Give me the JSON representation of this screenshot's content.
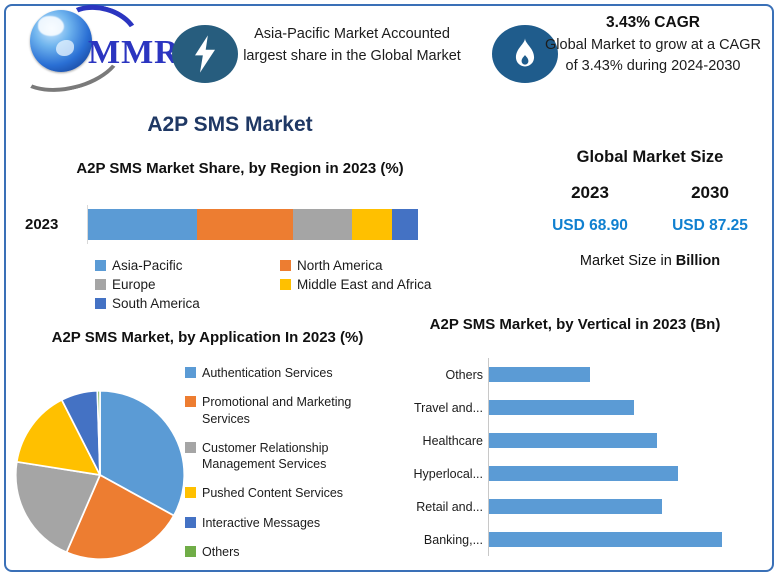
{
  "brand": {
    "logo_text": "MMR"
  },
  "header": {
    "highlight": {
      "icon": "lightning-icon",
      "text": "Asia-Pacific Market Accounted largest share in the Global Market"
    },
    "cagr": {
      "icon": "flame-icon",
      "title": "3.43% CAGR",
      "text": "Global Market to grow at a CAGR of 3.43% during 2024-2030"
    }
  },
  "page": {
    "title": "A2P SMS Market"
  },
  "market_size": {
    "title": "Global Market Size",
    "years": [
      "2023",
      "2030"
    ],
    "values": [
      "USD 68.90",
      "USD 87.25"
    ],
    "value_color": "#1080D0",
    "note_prefix": "Market Size in ",
    "note_bold": "Billion"
  },
  "chart_data": [
    {
      "type": "bar",
      "subtype": "stacked-horizontal",
      "title": "A2P SMS Market Share, by Region in 2023 (%)",
      "categories": [
        "2023"
      ],
      "series": [
        {
          "name": "Asia-Pacific",
          "values": [
            33
          ],
          "color": "#5B9BD5"
        },
        {
          "name": "North America",
          "values": [
            29
          ],
          "color": "#ED7D31"
        },
        {
          "name": "Europe",
          "values": [
            18
          ],
          "color": "#A5A5A5"
        },
        {
          "name": "Middle East and Africa",
          "values": [
            12
          ],
          "color": "#FFC000"
        },
        {
          "name": "South America",
          "values": [
            8
          ],
          "color": "#4472C4"
        }
      ],
      "xlim": [
        0,
        100
      ],
      "grid": false,
      "legend_position": "bottom"
    },
    {
      "type": "pie",
      "title": "A2P SMS Market, by Application In 2023 (%)",
      "labels": [
        "Authentication Services",
        "Promotional and Marketing Services",
        "Customer Relationship Management Services",
        "Pushed Content Services",
        "Interactive Messages",
        "Others"
      ],
      "values": [
        33,
        23.5,
        21,
        15,
        7,
        0.5
      ],
      "colors": [
        "#5B9BD5",
        "#ED7D31",
        "#A5A5A5",
        "#FFC000",
        "#4472C4",
        "#70AD47"
      ],
      "start_angle_deg": 0,
      "legend_position": "right"
    },
    {
      "type": "bar",
      "subtype": "horizontal",
      "title": "A2P SMS Market, by Vertical in 2023 (Bn)",
      "categories": [
        "Others",
        "Travel and...",
        "Healthcare",
        "Hyperlocal...",
        "Retail and...",
        "Banking,..."
      ],
      "values": [
        6.9,
        9.9,
        11.5,
        12.9,
        11.8,
        15.9
      ],
      "bar_color": "#5B9BD5",
      "xlim": [
        0,
        19
      ],
      "grid": false,
      "xlabel": "",
      "ylabel": ""
    }
  ]
}
